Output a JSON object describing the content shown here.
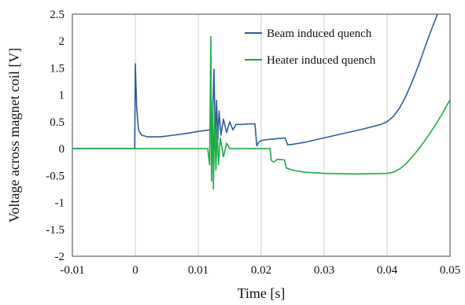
{
  "chart_data": {
    "type": "line",
    "title": "",
    "xlabel": "Time [s]",
    "ylabel": "Voltage across magnet coil [V]",
    "xlim": [
      -0.01,
      0.05
    ],
    "ylim": [
      -2,
      2.5
    ],
    "x_ticks": [
      -0.01,
      0,
      0.01,
      0.02,
      0.03,
      0.04,
      0.05
    ],
    "x_tick_labels": [
      "-0.01",
      "0",
      "0.01",
      "0.02",
      "0.03",
      "0.04",
      "0.05"
    ],
    "y_ticks": [
      -2,
      -1.5,
      -1,
      -0.5,
      0,
      0.5,
      1,
      1.5,
      2,
      2.5
    ],
    "y_tick_labels": [
      "-2",
      "-1.5",
      "-1",
      "-0.5",
      "0",
      "0.5",
      "1",
      "1.5",
      "2",
      "2.5"
    ],
    "grid": "vertical",
    "legend_position": "top-right",
    "series": [
      {
        "name": "Beam induced quench",
        "color": "#2e5d9e",
        "x": [
          -0.01,
          -0.0001,
          0.0,
          0.0002,
          0.0005,
          0.001,
          0.002,
          0.004,
          0.006,
          0.008,
          0.01,
          0.0118,
          0.0122,
          0.0125,
          0.0127,
          0.0129,
          0.0131,
          0.0133,
          0.0136,
          0.014,
          0.0145,
          0.015,
          0.0155,
          0.016,
          0.017,
          0.018,
          0.019,
          0.0193,
          0.0196,
          0.02,
          0.021,
          0.022,
          0.023,
          0.0238,
          0.0242,
          0.025,
          0.027,
          0.03,
          0.033,
          0.036,
          0.039,
          0.04,
          0.041,
          0.042,
          0.043,
          0.044,
          0.045,
          0.046,
          0.047,
          0.048
        ],
        "y": [
          0.0,
          0.0,
          1.58,
          0.8,
          0.35,
          0.25,
          0.22,
          0.22,
          0.25,
          0.28,
          0.32,
          0.35,
          0.3,
          1.48,
          0.1,
          0.9,
          0.15,
          0.7,
          0.25,
          0.55,
          0.3,
          0.5,
          0.35,
          0.45,
          0.45,
          0.46,
          0.46,
          0.05,
          0.12,
          0.15,
          0.17,
          0.18,
          0.19,
          0.2,
          0.07,
          0.08,
          0.12,
          0.2,
          0.28,
          0.36,
          0.45,
          0.5,
          0.6,
          0.76,
          0.98,
          1.25,
          1.55,
          1.88,
          2.2,
          2.5
        ]
      },
      {
        "name": "Heater induced quench",
        "color": "#1faa45",
        "x": [
          -0.01,
          0.0,
          0.005,
          0.0115,
          0.0118,
          0.012,
          0.0121,
          0.0123,
          0.0124,
          0.0126,
          0.0128,
          0.013,
          0.0132,
          0.0135,
          0.014,
          0.0145,
          0.015,
          0.016,
          0.018,
          0.02,
          0.0214,
          0.0216,
          0.022,
          0.0225,
          0.023,
          0.0237,
          0.024,
          0.025,
          0.027,
          0.03,
          0.035,
          0.04,
          0.041,
          0.042,
          0.043,
          0.044,
          0.045,
          0.046,
          0.047,
          0.048,
          0.049,
          0.05
        ],
        "y": [
          0.0,
          0.0,
          0.0,
          0.0,
          -0.3,
          2.08,
          -0.6,
          0.9,
          -0.75,
          0.6,
          -0.4,
          0.4,
          -0.3,
          0.2,
          -0.15,
          0.1,
          0.0,
          0.0,
          0.0,
          0.0,
          0.0,
          -0.22,
          -0.25,
          -0.2,
          -0.2,
          -0.21,
          -0.36,
          -0.4,
          -0.44,
          -0.46,
          -0.47,
          -0.46,
          -0.44,
          -0.38,
          -0.28,
          -0.15,
          -0.01,
          0.15,
          0.32,
          0.5,
          0.7,
          0.91
        ]
      }
    ]
  }
}
